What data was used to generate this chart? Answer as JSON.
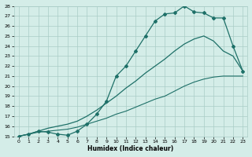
{
  "xlabel": "Humidex (Indice chaleur)",
  "xlim": [
    -0.5,
    23.5
  ],
  "ylim": [
    15,
    28
  ],
  "xticks": [
    0,
    1,
    2,
    3,
    4,
    5,
    6,
    7,
    8,
    9,
    10,
    11,
    12,
    13,
    14,
    15,
    16,
    17,
    18,
    19,
    20,
    21,
    22,
    23
  ],
  "yticks": [
    15,
    16,
    17,
    18,
    19,
    20,
    21,
    22,
    23,
    24,
    25,
    26,
    27,
    28
  ],
  "bg_color": "#d4ede8",
  "grid_color": "#aaccc6",
  "line_color": "#1e7068",
  "line1_x": [
    0,
    1,
    2,
    3,
    4,
    5,
    6,
    7,
    8,
    9,
    10,
    11,
    12,
    13,
    14,
    15,
    16,
    17,
    18,
    19,
    20,
    21,
    22,
    23
  ],
  "line1_y": [
    15.0,
    15.2,
    15.5,
    15.4,
    15.2,
    15.1,
    15.5,
    16.2,
    17.2,
    18.5,
    21.0,
    22.0,
    23.5,
    25.0,
    26.5,
    27.2,
    27.3,
    28.0,
    27.4,
    27.3,
    26.8,
    26.8,
    24.0,
    21.5
  ],
  "line2_x": [
    0,
    1,
    2,
    3,
    4,
    5,
    6,
    7,
    8,
    9,
    10,
    11,
    12,
    13,
    14,
    15,
    16,
    17,
    18,
    19,
    20,
    21,
    22,
    23
  ],
  "line2_y": [
    15.0,
    15.2,
    15.5,
    15.8,
    16.0,
    16.2,
    16.5,
    17.0,
    17.6,
    18.3,
    19.0,
    19.8,
    20.5,
    21.3,
    22.0,
    22.7,
    23.5,
    24.2,
    24.7,
    25.0,
    24.5,
    23.5,
    23.0,
    21.5
  ],
  "line3_x": [
    0,
    1,
    2,
    3,
    4,
    5,
    6,
    7,
    8,
    9,
    10,
    11,
    12,
    13,
    14,
    15,
    16,
    17,
    18,
    19,
    20,
    21,
    22,
    23
  ],
  "line3_y": [
    15.0,
    15.2,
    15.4,
    15.5,
    15.6,
    15.7,
    15.9,
    16.2,
    16.5,
    16.8,
    17.2,
    17.5,
    17.9,
    18.3,
    18.7,
    19.0,
    19.5,
    20.0,
    20.4,
    20.7,
    20.9,
    21.0,
    21.0,
    21.0
  ]
}
